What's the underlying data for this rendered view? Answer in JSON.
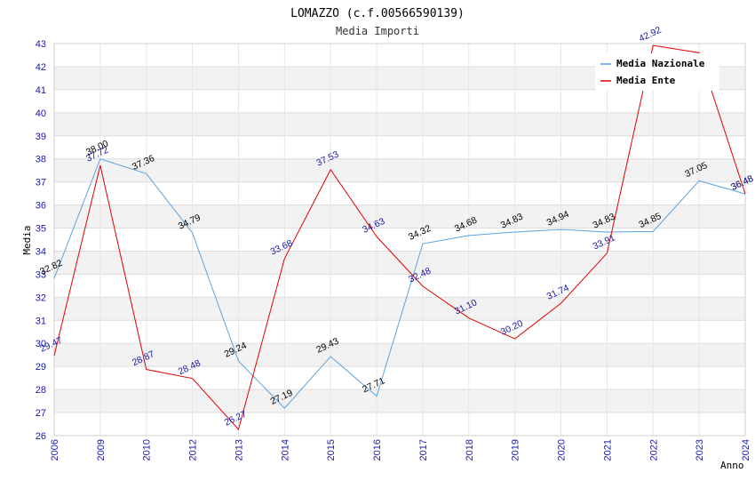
{
  "chart_data": {
    "type": "line",
    "title": "LOMAZZO (c.f.00566590139)",
    "subtitle": "Media Importi",
    "xlabel": "Anno",
    "ylabel": "Media",
    "ylim": [
      26,
      43
    ],
    "yticks": [
      "26",
      "27",
      "28",
      "29",
      "30",
      "31",
      "32",
      "33",
      "34",
      "35",
      "36",
      "37",
      "38",
      "39",
      "40",
      "41",
      "42",
      "43"
    ],
    "categories": [
      "2006",
      "2009",
      "2010",
      "2012",
      "2013",
      "2014",
      "2015",
      "2016",
      "2017",
      "2018",
      "2019",
      "2020",
      "2021",
      "2022",
      "2023",
      "2024"
    ],
    "series": [
      {
        "name": "Media Nazionale",
        "color": "#5ba3e0",
        "values": [
          32.82,
          38.0,
          37.36,
          34.79,
          29.24,
          27.19,
          29.43,
          27.71,
          34.32,
          34.68,
          34.83,
          34.94,
          34.83,
          34.85,
          37.05,
          36.48
        ],
        "labels": [
          "32.82",
          "38.00",
          "37.36",
          "34.79",
          "29.24",
          "27.19",
          "29.43",
          "27.71",
          "34.32",
          "34.68",
          "34.83",
          "34.94",
          "34.83",
          "34.85",
          "37.05",
          "36.48"
        ]
      },
      {
        "name": "Media Ente",
        "color": "#e00000",
        "values": [
          29.47,
          37.72,
          28.87,
          28.48,
          26.27,
          33.68,
          37.53,
          34.63,
          32.48,
          31.1,
          30.2,
          31.74,
          33.91,
          42.92,
          42.6,
          36.48
        ],
        "labels": [
          "29.47",
          "37.72",
          "28.87",
          "28.48",
          "26.27",
          "33.68",
          "37.53",
          "34.63",
          "32.48",
          "31.10",
          "30.20",
          "31.74",
          "33.91",
          "42.92",
          "",
          "36.48"
        ]
      }
    ],
    "grid": true,
    "legend_position": "top-right"
  }
}
